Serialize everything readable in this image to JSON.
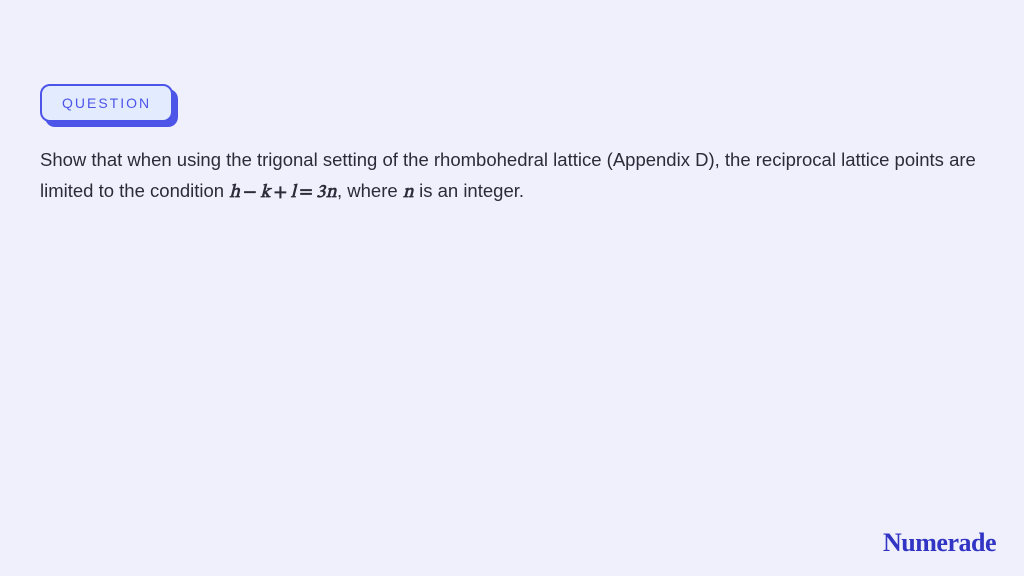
{
  "colors": {
    "page_background": "#eff0fc",
    "badge_fill": "#e3ecff",
    "badge_border": "#4d55e8",
    "badge_shadow": "#4d55e8",
    "badge_text": "#4d55e8",
    "body_text": "#2b2b3a",
    "logo_text": "#3235c4"
  },
  "badge": {
    "label": "QUESTION"
  },
  "question": {
    "part1": "Show that when using the trigonal setting of the rhombohedral lattice (Appendix D), the reciprocal lattice points are limited to the condition ",
    "math1": "h − k + l = 3n",
    "part2": ", where ",
    "math2": "n",
    "part3": " is an integer."
  },
  "math_parts": {
    "h": "h",
    "minus": "−",
    "k": "k",
    "plus": "+",
    "l": "l",
    "eq": "=",
    "three_n": "3n",
    "n": "n"
  },
  "logo": {
    "text": "Numerade"
  },
  "typography": {
    "badge_fontsize": 14,
    "body_fontsize": 18.5,
    "logo_fontsize": 26
  }
}
